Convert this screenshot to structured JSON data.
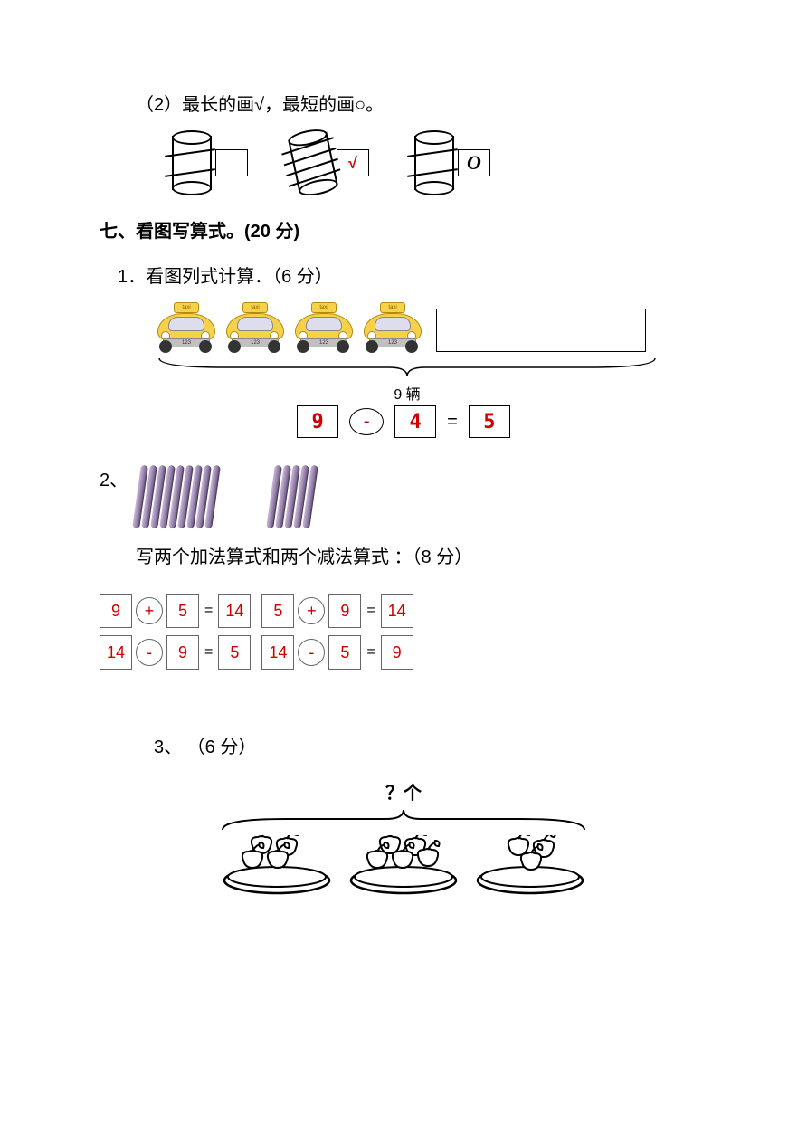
{
  "q2_prompt": "（2）最长的画√，最短的画○。",
  "cylinders": {
    "answers": [
      "",
      "√",
      "O"
    ],
    "wrap_counts": [
      2,
      4,
      2
    ]
  },
  "section7_heading": "七、看图写算式。(20 分)",
  "q7_1": {
    "prompt": "1．看图列式计算．（6 分）",
    "taxis_visible": 4,
    "taxi_sign": "taxi",
    "taxi_plate": "123",
    "brace_label": "9 辆",
    "equation": {
      "a": "9",
      "op": "-",
      "b": "4",
      "eq": "=",
      "c": "5"
    }
  },
  "q7_2": {
    "label": "2、",
    "stick_groups": [
      9,
      5
    ],
    "prompt": "写两个加法算式和两个减法算式 ：（8 分）",
    "equations": [
      {
        "a": "9",
        "op": "+",
        "b": "5",
        "eq": "=",
        "c": "14",
        "a2": "5",
        "op2": "+",
        "b2": "9",
        "eq2": "=",
        "c2": "14"
      },
      {
        "a": "14",
        "op": "-",
        "b": "9",
        "eq": "=",
        "c": "5",
        "a2": "14",
        "op2": "-",
        "b2": "5",
        "eq2": "=",
        "c2": "9"
      }
    ]
  },
  "q7_3": {
    "prompt": "3、 （6 分）",
    "brace_label": "？个",
    "apple_counts": [
      4,
      5,
      3
    ]
  },
  "colors": {
    "answer_red": "#d00000",
    "taxi_body": "#f6d24a",
    "stick": "#907aa6",
    "border": "#000000"
  }
}
